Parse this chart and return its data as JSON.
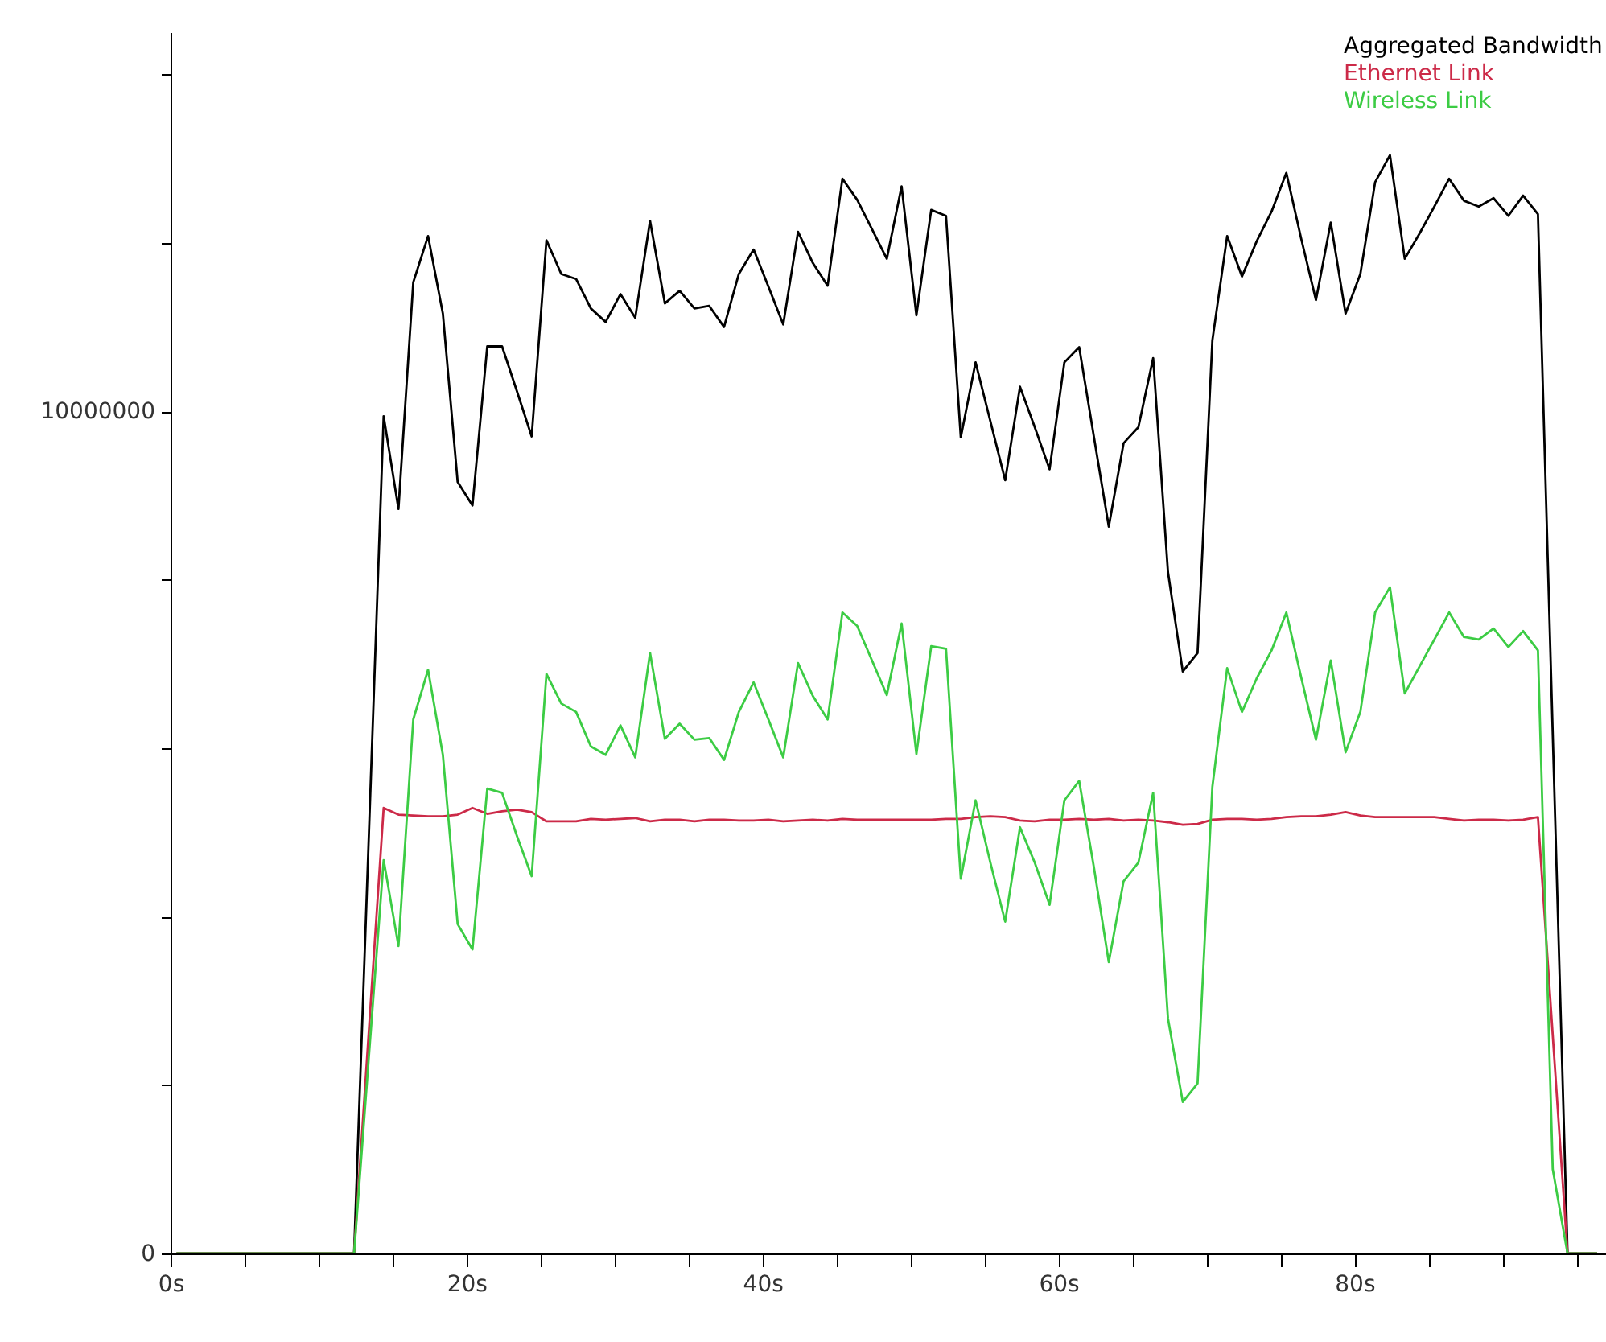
{
  "chart_data": {
    "type": "line",
    "xlim": [
      0,
      97
    ],
    "xticks": [
      {
        "value": 0,
        "label": "0s"
      },
      {
        "value": 5,
        "label": null
      },
      {
        "value": 10,
        "label": null
      },
      {
        "value": 15,
        "label": null
      },
      {
        "value": 20,
        "label": "20s"
      },
      {
        "value": 25,
        "label": null
      },
      {
        "value": 30,
        "label": null
      },
      {
        "value": 35,
        "label": null
      },
      {
        "value": 40,
        "label": "40s"
      },
      {
        "value": 45,
        "label": null
      },
      {
        "value": 50,
        "label": null
      },
      {
        "value": 55,
        "label": null
      },
      {
        "value": 60,
        "label": "60s"
      },
      {
        "value": 65,
        "label": null
      },
      {
        "value": 70,
        "label": null
      },
      {
        "value": 75,
        "label": null
      },
      {
        "value": 80,
        "label": "80s"
      },
      {
        "value": 85,
        "label": null
      },
      {
        "value": 90,
        "label": null
      },
      {
        "value": 95,
        "label": null
      }
    ],
    "ylim": [
      0,
      14500000
    ],
    "yticks": [
      0,
      {
        "value": 2000000,
        "label": null
      },
      {
        "value": 4000000,
        "label": null
      },
      {
        "value": 6000000,
        "label": null
      },
      {
        "value": 8000000,
        "label": null
      },
      10000000,
      {
        "value": 12000000,
        "label": null
      },
      {
        "value": 14000000,
        "label": null
      }
    ],
    "legend": "top right",
    "series": [
      {
        "name": "Aggregated Bandwidth",
        "color": "#000000",
        "x": [
          0.4,
          12.4,
          14.4,
          15.4,
          16.4,
          17.4,
          18.4,
          19.4,
          20.4,
          21.4,
          22.4,
          23.4,
          24.4,
          25.4,
          26.4,
          27.4,
          28.4,
          29.4,
          30.4,
          31.4,
          32.4,
          33.4,
          34.4,
          35.4,
          36.4,
          37.4,
          38.4,
          39.4,
          40.4,
          41.4,
          42.4,
          43.4,
          44.4,
          45.4,
          46.4,
          47.4,
          48.4,
          49.4,
          50.4,
          51.4,
          52.4,
          53.4,
          54.4,
          55.4,
          56.4,
          57.4,
          58.4,
          59.4,
          60.4,
          61.4,
          62.4,
          63.4,
          64.4,
          65.4,
          66.4,
          67.4,
          68.4,
          69.4,
          70.4,
          71.4,
          72.4,
          73.4,
          74.4,
          75.4,
          76.4,
          77.4,
          78.4,
          79.4,
          80.4,
          81.4,
          82.4,
          83.4,
          84.4,
          85.4,
          86.4,
          87.4,
          88.4,
          89.4,
          90.4,
          91.4,
          92.4,
          94.4,
          96.4
        ],
        "values": [
          0,
          0,
          9940000,
          8840000,
          11530000,
          12080000,
          11160000,
          9160000,
          8880000,
          10770000,
          10770000,
          10240000,
          9700000,
          12030000,
          11630000,
          11570000,
          11220000,
          11060000,
          11390000,
          11110000,
          12260000,
          11280000,
          11430000,
          11220000,
          11250000,
          11000000,
          11630000,
          11920000,
          11480000,
          11030000,
          12130000,
          11760000,
          11490000,
          12760000,
          12510000,
          12160000,
          11810000,
          12670000,
          11140000,
          12390000,
          12320000,
          9690000,
          10580000,
          9880000,
          9180000,
          10290000,
          9810000,
          9310000,
          10580000,
          10760000,
          9690000,
          8630000,
          9620000,
          9810000,
          10630000,
          8090000,
          6910000,
          7130000,
          10840000,
          12080000,
          11600000,
          12020000,
          12370000,
          12830000,
          12050000,
          11320000,
          12240000,
          11160000,
          11630000,
          12720000,
          13040000,
          11810000,
          12110000,
          12430000,
          12760000,
          12500000,
          12430000,
          12530000,
          12320000,
          12560000,
          12340000,
          0,
          0
        ]
      },
      {
        "name": "Ethernet Link",
        "color": "#cc2a48",
        "x": [
          0.4,
          12.4,
          14.4,
          15.4,
          16.4,
          17.4,
          18.4,
          19.4,
          20.4,
          21.4,
          22.4,
          23.4,
          24.4,
          25.4,
          26.4,
          27.4,
          28.4,
          29.4,
          30.4,
          31.4,
          32.4,
          33.4,
          34.4,
          35.4,
          36.4,
          37.4,
          38.4,
          39.4,
          40.4,
          41.4,
          42.4,
          43.4,
          44.4,
          45.4,
          46.4,
          47.4,
          48.4,
          49.4,
          50.4,
          51.4,
          52.4,
          53.4,
          54.4,
          55.4,
          56.4,
          57.4,
          58.4,
          59.4,
          60.4,
          61.4,
          62.4,
          63.4,
          64.4,
          65.4,
          66.4,
          67.4,
          68.4,
          69.4,
          70.4,
          71.4,
          72.4,
          73.4,
          74.4,
          75.4,
          76.4,
          77.4,
          78.4,
          79.4,
          80.4,
          81.4,
          82.4,
          83.4,
          84.4,
          85.4,
          86.4,
          87.4,
          88.4,
          89.4,
          90.4,
          91.4,
          92.4,
          94.4,
          96.4
        ],
        "values": [
          0,
          0,
          5290000,
          5210000,
          5200000,
          5190000,
          5190000,
          5210000,
          5290000,
          5220000,
          5250000,
          5270000,
          5240000,
          5130000,
          5130000,
          5130000,
          5160000,
          5150000,
          5160000,
          5170000,
          5130000,
          5150000,
          5150000,
          5130000,
          5150000,
          5150000,
          5140000,
          5140000,
          5150000,
          5130000,
          5140000,
          5150000,
          5140000,
          5160000,
          5150000,
          5150000,
          5150000,
          5150000,
          5150000,
          5150000,
          5160000,
          5160000,
          5180000,
          5190000,
          5180000,
          5140000,
          5130000,
          5150000,
          5150000,
          5160000,
          5150000,
          5160000,
          5140000,
          5150000,
          5140000,
          5120000,
          5090000,
          5100000,
          5150000,
          5160000,
          5160000,
          5150000,
          5160000,
          5180000,
          5190000,
          5190000,
          5210000,
          5240000,
          5200000,
          5180000,
          5180000,
          5180000,
          5180000,
          5180000,
          5160000,
          5140000,
          5150000,
          5150000,
          5140000,
          5150000,
          5180000,
          0,
          0
        ]
      },
      {
        "name": "Wireless Link",
        "color": "#3ccc44",
        "x": [
          0.4,
          12.4,
          14.4,
          15.4,
          16.4,
          17.4,
          18.4,
          19.4,
          20.4,
          21.4,
          22.4,
          23.4,
          24.4,
          25.4,
          26.4,
          27.4,
          28.4,
          29.4,
          30.4,
          31.4,
          32.4,
          33.4,
          34.4,
          35.4,
          36.4,
          37.4,
          38.4,
          39.4,
          40.4,
          41.4,
          42.4,
          43.4,
          44.4,
          45.4,
          46.4,
          47.4,
          48.4,
          49.4,
          50.4,
          51.4,
          52.4,
          53.4,
          54.4,
          55.4,
          56.4,
          57.4,
          58.4,
          59.4,
          60.4,
          61.4,
          62.4,
          63.4,
          64.4,
          65.4,
          66.4,
          67.4,
          68.4,
          69.4,
          70.4,
          71.4,
          72.4,
          73.4,
          74.4,
          75.4,
          76.4,
          77.4,
          78.4,
          79.4,
          80.4,
          81.4,
          82.4,
          83.4,
          84.4,
          85.4,
          86.4,
          87.4,
          88.4,
          89.4,
          90.4,
          91.4,
          92.4,
          93.4,
          94.4,
          96.4
        ],
        "values": [
          0,
          0,
          4670000,
          3650000,
          6340000,
          6930000,
          5920000,
          3910000,
          3610000,
          5520000,
          5470000,
          4960000,
          4480000,
          6880000,
          6530000,
          6430000,
          6020000,
          5920000,
          6270000,
          5890000,
          7130000,
          6110000,
          6290000,
          6100000,
          6120000,
          5860000,
          6430000,
          6780000,
          6340000,
          5890000,
          7010000,
          6620000,
          6340000,
          7610000,
          7450000,
          7040000,
          6630000,
          7480000,
          5930000,
          7210000,
          7180000,
          4450000,
          5380000,
          4640000,
          3940000,
          5060000,
          4640000,
          4140000,
          5380000,
          5610000,
          4580000,
          3460000,
          4420000,
          4640000,
          5470000,
          2790000,
          1800000,
          2020000,
          5540000,
          6950000,
          6430000,
          6830000,
          7160000,
          7610000,
          6840000,
          6100000,
          7040000,
          5950000,
          6430000,
          7610000,
          7910000,
          6650000,
          6970000,
          7290000,
          7610000,
          7320000,
          7290000,
          7420000,
          7200000,
          7390000,
          7160000,
          1000000,
          0,
          0
        ]
      }
    ]
  }
}
